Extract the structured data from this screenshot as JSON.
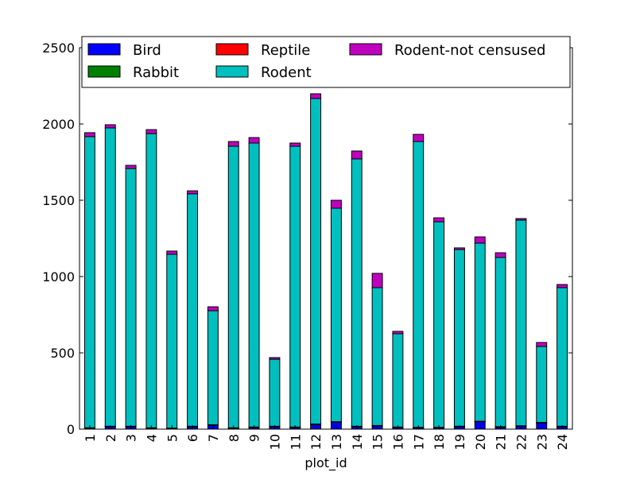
{
  "chart_data": {
    "type": "bar",
    "stacked": true,
    "xlabel": "plot_id",
    "ylabel": "",
    "ylim": [
      0,
      2500
    ],
    "yticks": [
      0,
      500,
      1000,
      1500,
      2000,
      2500
    ],
    "grid": false,
    "legend_placement": "top",
    "categories": [
      "1",
      "2",
      "3",
      "4",
      "5",
      "6",
      "7",
      "8",
      "9",
      "10",
      "11",
      "12",
      "13",
      "14",
      "15",
      "16",
      "17",
      "18",
      "19",
      "20",
      "21",
      "22",
      "23",
      "24"
    ],
    "series": [
      {
        "name": "Bird",
        "color": "#0000ff",
        "values": [
          5,
          15,
          15,
          5,
          3,
          15,
          25,
          5,
          10,
          15,
          10,
          30,
          45,
          15,
          20,
          10,
          8,
          8,
          15,
          48,
          12,
          18,
          40,
          15
        ]
      },
      {
        "name": "Rabbit",
        "color": "#008000",
        "values": [
          3,
          3,
          3,
          3,
          3,
          3,
          3,
          3,
          3,
          3,
          3,
          3,
          3,
          3,
          3,
          3,
          3,
          3,
          3,
          3,
          3,
          3,
          3,
          3
        ]
      },
      {
        "name": "Reptile",
        "color": "#ff0000",
        "values": [
          1,
          1,
          1,
          1,
          1,
          1,
          1,
          1,
          1,
          1,
          1,
          1,
          1,
          1,
          1,
          1,
          1,
          1,
          1,
          1,
          1,
          1,
          1,
          1
        ]
      },
      {
        "name": "Rodent",
        "color": "#00bfbf",
        "values": [
          1908,
          1955,
          1689,
          1928,
          1139,
          1523,
          747,
          1845,
          1861,
          439,
          1840,
          2133,
          1399,
          1752,
          903,
          611,
          1873,
          1347,
          1158,
          1167,
          1109,
          1348,
          498,
          908
        ]
      },
      {
        "name": "Rodent-not censused",
        "color": "#bf00bf",
        "values": [
          26,
          21,
          21,
          26,
          21,
          20,
          26,
          31,
          36,
          11,
          21,
          31,
          52,
          52,
          94,
          16,
          47,
          26,
          11,
          41,
          31,
          10,
          26,
          21
        ]
      }
    ]
  }
}
